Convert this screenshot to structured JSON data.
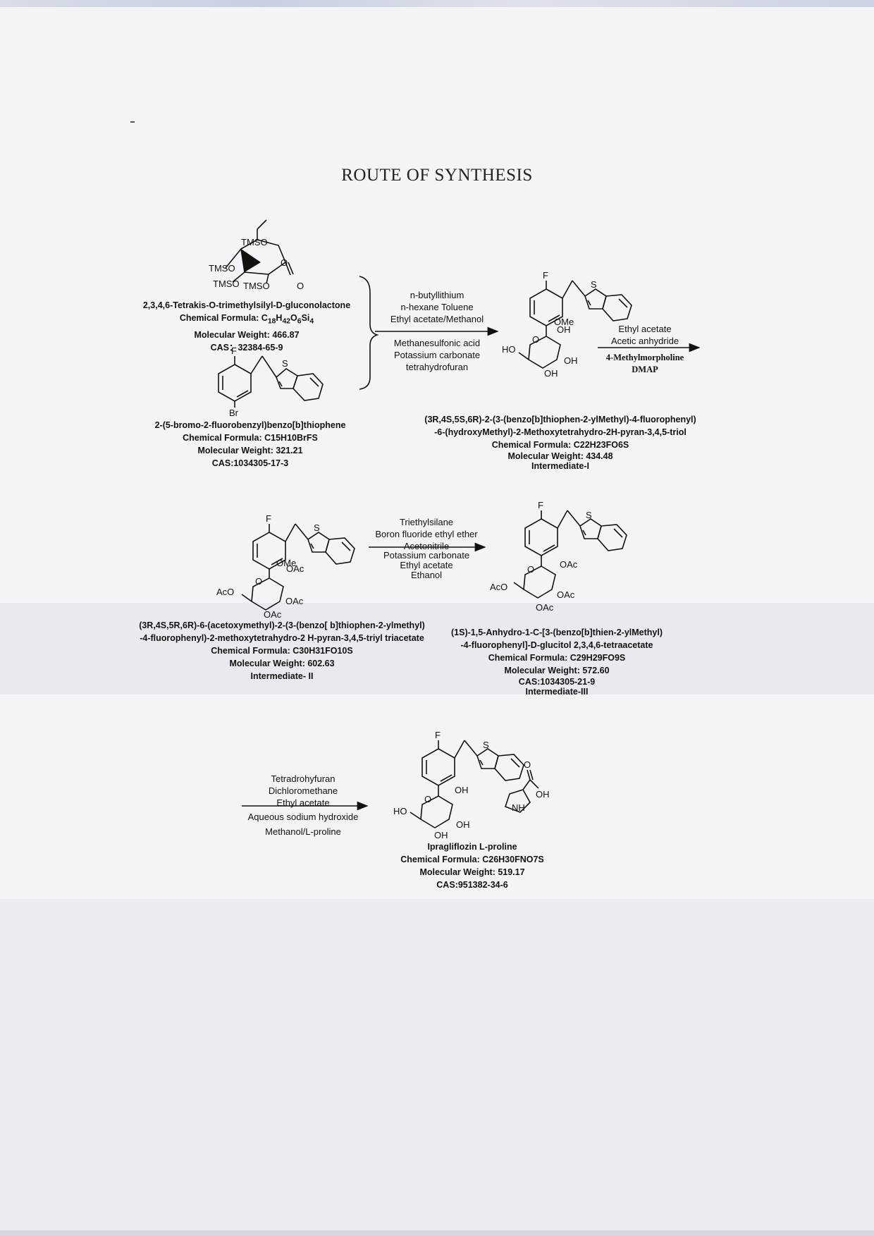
{
  "page": {
    "title": "ROUTE OF SYNTHESIS"
  },
  "compounds": {
    "gluconolactone": {
      "name": "2,3,4,6-Tetrakis-O-trimethylsilyl-D-gluconolactone",
      "formula_prefix": "Chemical Formula: C",
      "formula_parts": [
        "18",
        "H",
        "42",
        "O",
        "6",
        "Si",
        "4"
      ],
      "mw": "Molecular Weight: 466.87",
      "cas": "CAS：32384-65-9",
      "labels": {
        "tmso1": "TMSO",
        "tmso2": "TMSO",
        "tmso3": "TMSO",
        "tmso4": "TMSO",
        "o_ring": "O",
        "o_carbonyl": "O"
      }
    },
    "bromide": {
      "name": "2-(5-bromo-2-fluorobenzyl)benzo[b]thiophene",
      "formula": "Chemical Formula: C15H10BrFS",
      "mw": "Molecular Weight: 321.21",
      "cas": "CAS:1034305-17-3",
      "labels": {
        "f": "F",
        "s": "S",
        "br": "Br"
      }
    },
    "intermediate1": {
      "name_line1": "(3R,4S,5S,6R)-2-(3-(benzo[b]thiophen-2-ylMethyl)-4-fluorophenyl)",
      "name_line2": "-6-(hydroxyMethyl)-2-Methoxytetrahydro-2H-pyran-3,4,5-triol",
      "formula": "Chemical Formula: C22H23FO6S",
      "mw": "Molecular Weight: 434.48",
      "tag": "Intermediate-I",
      "labels": {
        "f": "F",
        "s": "S",
        "ome": "OMe",
        "oh1": "OH",
        "oh2": "OH",
        "oh3": "OH",
        "ho": "HO",
        "o": "O"
      }
    },
    "intermediate2": {
      "name_line1": "(3R,4S,5R,6R)-6-(acetoxymethyl)-2-(3-(benzo[ b]thiophen-2-ylmethyl)",
      "name_line2": "-4-fluorophenyl)-2-methoxytetrahydro-2 H-pyran-3,4,5-triyl triacetate",
      "formula": "Chemical Formula: C30H31FO10S",
      "mw": "Molecular Weight: 602.63",
      "tag": "Intermediate- II",
      "labels": {
        "f": "F",
        "s": "S",
        "ome": "OMe",
        "oac1": "OAc",
        "oac2": "OAc",
        "oac3": "OAc",
        "aco": "AcO",
        "o": "O"
      }
    },
    "intermediate3": {
      "name_line1": "(1S)-1,5-Anhydro-1-C-[3-(benzo[b]thien-2-ylMethyl)",
      "name_line2": "-4-fluorophenyl]-D-glucitol 2,3,4,6-tetraacetate",
      "formula": "Chemical Formula: C29H29FO9S",
      "mw": "Molecular Weight: 572.60",
      "cas": "CAS:1034305-21-9",
      "tag": "Intermediate-III",
      "labels": {
        "f": "F",
        "s": "S",
        "oac1": "OAc",
        "oac2": "OAc",
        "oac3": "OAc",
        "aco": "AcO",
        "o": "O"
      }
    },
    "product": {
      "name": "Ipragliflozin L-proline",
      "formula": "Chemical Formula: C26H30FNO7S",
      "mw": "Molecular Weight: 519.17",
      "cas": "CAS:951382-34-6",
      "labels": {
        "f": "F",
        "s": "S",
        "oh1": "OH",
        "oh2": "OH",
        "oh3": "OH",
        "ho": "HO",
        "o": "O",
        "o_acid": "O",
        "oh_acid": "OH",
        "nh": "NH"
      }
    }
  },
  "steps": {
    "step1": {
      "above": [
        "n-butyllithium",
        "n-hexane  Toluene",
        "Ethyl acetate/Methanol"
      ],
      "below": [
        "Methanesulfonic acid",
        "Potassium carbonate",
        "tetrahydrofuran"
      ]
    },
    "step2": {
      "above": [
        "Ethyl acetate",
        "Acetic anhydride"
      ],
      "below": [
        "4-Methylmorpholine",
        "DMAP"
      ]
    },
    "step3": {
      "above": [
        "Triethylsilane",
        "Boron fluoride ethyl ether",
        "Acetonitrile"
      ],
      "below": [
        "Potassium carbonate",
        "Ethyl acetate",
        "Ethanol"
      ]
    },
    "step4": {
      "above": [
        "Tetradrohyfuran",
        "Dichloromethane",
        "Ethyl acetate"
      ],
      "below": [
        "Aqueous sodium hydroxide",
        "Methanol/L-proline"
      ]
    }
  }
}
